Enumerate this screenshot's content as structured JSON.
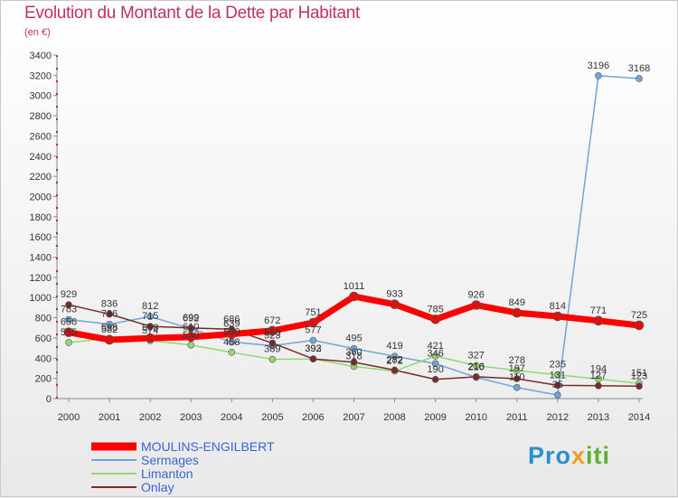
{
  "title": "Evolution du Montant de la Dette par Habitant",
  "subtitle": "(en €)",
  "logo_text": "Proxiti",
  "chart_data": {
    "type": "line",
    "title": "Evolution du Montant de la Dette par Habitant",
    "ylabel": "(en €)",
    "xlabel": "",
    "x": [
      "2000",
      "2001",
      "2002",
      "2003",
      "2004",
      "2005",
      "2006",
      "2007",
      "2008",
      "2009",
      "2010",
      "2011",
      "2012",
      "2013",
      "2014"
    ],
    "ylim": [
      0,
      3400
    ],
    "ytick_step": 200,
    "grid": false,
    "legend_position": "bottom-left",
    "series": [
      {
        "name": "MOULINS-ENGILBERT",
        "color": "#ff0000",
        "width": 7,
        "values": [
          656,
          582,
          598,
          610,
          639,
          672,
          751,
          1011,
          933,
          785,
          926,
          849,
          814,
          771,
          725
        ]
      },
      {
        "name": "Sermages",
        "color": "#6fa6d6",
        "width": 1.5,
        "values": [
          783,
          736,
          812,
          692,
          560,
          523,
          577,
          495,
          419,
          346,
          210,
          110,
          35,
          3196,
          3168
        ]
      },
      {
        "name": "Limanton",
        "color": "#90d970",
        "width": 1.5,
        "values": [
          555,
          598,
          574,
          530,
          458,
          389,
          392,
          318,
          272,
          421,
          327,
          278,
          235,
          194,
          151
        ]
      },
      {
        "name": "Onlay",
        "color": "#7a2a2a",
        "width": 1.5,
        "values": [
          929,
          836,
          715,
          699,
          686,
          550,
          393,
          360,
          282,
          190,
          216,
          197,
          131,
          127,
          123
        ]
      }
    ],
    "labels": [
      [
        "656",
        "582",
        "598",
        "610",
        "639",
        "672",
        "751",
        "1011",
        "933",
        "785",
        "926",
        "849",
        "814",
        "771",
        "725"
      ],
      [
        "783",
        "736",
        "812",
        "692",
        "560",
        "523",
        "577",
        "495",
        "419",
        "346",
        "210",
        "110",
        "35",
        "3196",
        "3168"
      ],
      [
        "555",
        "598",
        "574",
        "530",
        "458",
        "389",
        "392",
        "318",
        "272",
        "421",
        "327",
        "278",
        "235",
        "194",
        "151"
      ],
      [
        "929",
        "836",
        "715",
        "699",
        "686",
        "550",
        "393",
        "360",
        "282",
        "190",
        "216",
        "197",
        "131",
        "127",
        "123"
      ]
    ]
  }
}
